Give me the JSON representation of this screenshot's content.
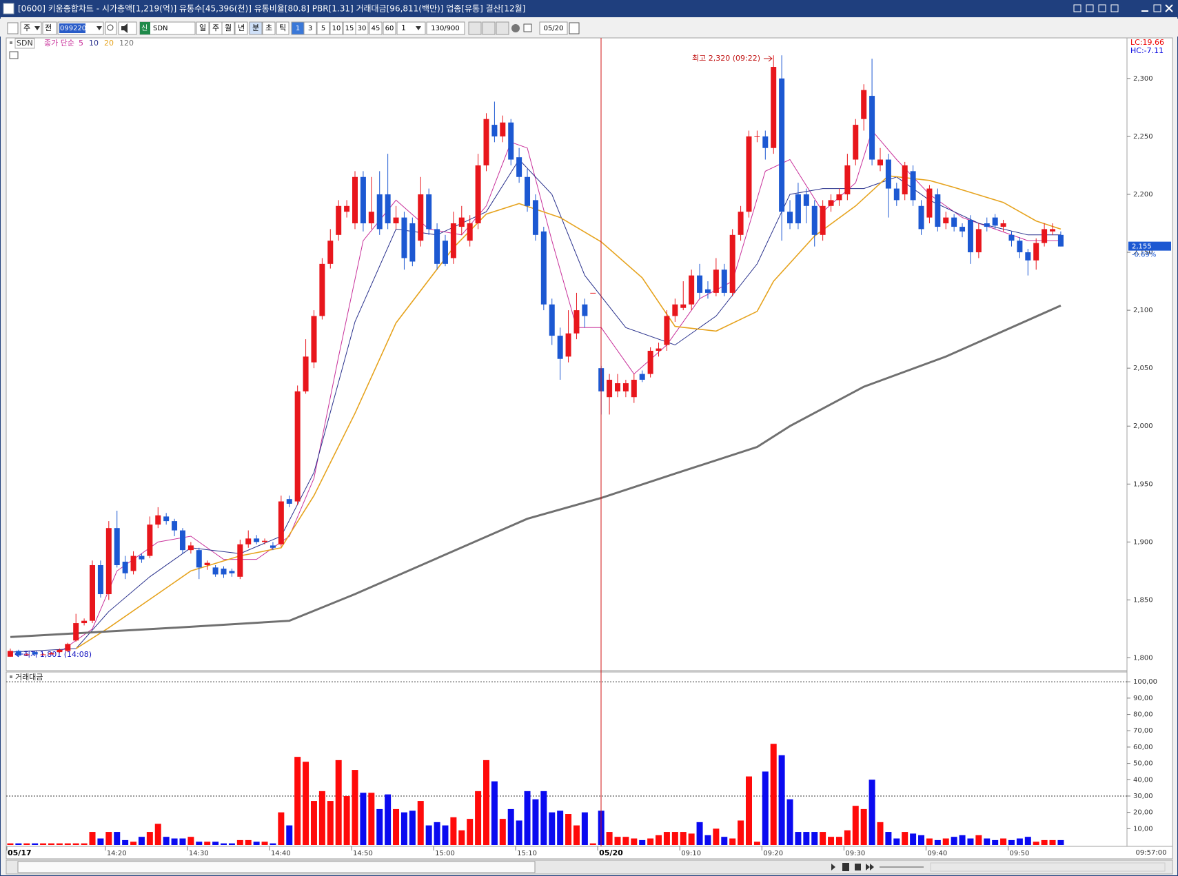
{
  "window": {
    "title": "[0600] 키움종합차트 - 시가총액[1,219(억)] 유통수[45,396(천)] 유통비율[80.8] PBR[1.31] 거래대금[96,811(백만)] 업종[유통] 결산[12월]",
    "toolbar": {
      "period": "주",
      "prev": "전",
      "code": "099220",
      "market": "신",
      "name": "SDN",
      "intervals": [
        "일",
        "주",
        "월",
        "년",
        "분",
        "초",
        "틱"
      ],
      "minutes": [
        "1",
        "3",
        "5",
        "10",
        "15",
        "30",
        "45",
        "60"
      ],
      "multiplier": "1",
      "count": "130/900",
      "date": "05/20"
    }
  },
  "chart_data": {
    "type": "candlestick",
    "name": "SDN",
    "ma_label": "종가 단순",
    "up_color": "#e8161c",
    "down_color": "#1c58d2",
    "ylim": [
      1789,
      2335
    ],
    "yticks": [
      {
        "value": 1800,
        "label": "1,800"
      },
      {
        "value": 1850,
        "label": "1,850"
      },
      {
        "value": 1900,
        "label": "1,900"
      },
      {
        "value": 1950,
        "label": "1,950"
      },
      {
        "value": 2000,
        "label": "2,000"
      },
      {
        "value": 2050,
        "label": "2,050"
      },
      {
        "value": 2100,
        "label": "2,100"
      },
      {
        "value": 2150,
        "label": "2,150"
      },
      {
        "value": 2200,
        "label": "2,200"
      },
      {
        "value": 2250,
        "label": "2,250"
      },
      {
        "value": 2300,
        "label": "2,300"
      }
    ],
    "high_label": "최고 2,320 (09:22)",
    "low_label": "최저 1,801 (14:08)",
    "lc": "LC:19.66",
    "hc": "HC:-7.11",
    "last_price": {
      "value": 2155,
      "label": "2,155"
    },
    "change": "-0.69%",
    "current_time": "09:57:00",
    "categories": [
      "05/17",
      null,
      null,
      null,
      null,
      null,
      null,
      null,
      null,
      null,
      null,
      null,
      "14:20",
      null,
      null,
      null,
      null,
      null,
      null,
      null,
      null,
      null,
      "14:30",
      null,
      null,
      null,
      null,
      null,
      null,
      null,
      null,
      null,
      "14:40",
      null,
      null,
      null,
      null,
      null,
      null,
      null,
      null,
      null,
      "14:50",
      null,
      null,
      null,
      null,
      null,
      null,
      null,
      null,
      null,
      "15:00",
      null,
      null,
      null,
      null,
      null,
      null,
      null,
      null,
      null,
      "15:10",
      null,
      null,
      null,
      null,
      null,
      null,
      null,
      null,
      null,
      "05/20",
      null,
      null,
      null,
      null,
      null,
      null,
      null,
      null,
      null,
      "09:10",
      null,
      null,
      null,
      null,
      null,
      null,
      null,
      null,
      null,
      "09:20",
      null,
      null,
      null,
      null,
      null,
      null,
      null,
      null,
      null,
      "09:30",
      null,
      null,
      null,
      null,
      null,
      null,
      null,
      null,
      null,
      "09:40",
      null,
      null,
      null,
      null,
      null,
      null,
      null,
      null,
      null,
      "09:50",
      null,
      null,
      null,
      null,
      null,
      null
    ],
    "candles": [
      [
        1801,
        1808,
        1801,
        1806
      ],
      [
        1806,
        1807,
        1801,
        1802
      ],
      [
        1803,
        1804,
        1802,
        1803
      ],
      [
        1805,
        1806,
        1802,
        1803
      ],
      [
        1803,
        1804,
        1802,
        1803
      ],
      [
        1803,
        1805,
        1803,
        1804
      ],
      [
        1805,
        1808,
        1804,
        1807
      ],
      [
        1806,
        1813,
        1805,
        1812
      ],
      [
        1815,
        1838,
        1814,
        1830
      ],
      [
        1830,
        1834,
        1828,
        1832
      ],
      [
        1832,
        1884,
        1830,
        1880
      ],
      [
        1880,
        1884,
        1852,
        1855
      ],
      [
        1855,
        1918,
        1850,
        1912
      ],
      [
        1912,
        1927,
        1878,
        1880
      ],
      [
        1883,
        1888,
        1868,
        1873
      ],
      [
        1875,
        1892,
        1872,
        1888
      ],
      [
        1888,
        1890,
        1882,
        1885
      ],
      [
        1888,
        1922,
        1886,
        1915
      ],
      [
        1915,
        1930,
        1912,
        1923
      ],
      [
        1922,
        1925,
        1915,
        1918
      ],
      [
        1918,
        1920,
        1905,
        1910
      ],
      [
        1910,
        1912,
        1890,
        1893
      ],
      [
        1893,
        1900,
        1890,
        1897
      ],
      [
        1893,
        1895,
        1868,
        1878
      ],
      [
        1880,
        1884,
        1876,
        1882
      ],
      [
        1878,
        1880,
        1870,
        1872
      ],
      [
        1877,
        1879,
        1869,
        1872
      ],
      [
        1875,
        1877,
        1870,
        1873
      ],
      [
        1870,
        1902,
        1868,
        1898
      ],
      [
        1898,
        1910,
        1895,
        1903
      ],
      [
        1903,
        1906,
        1898,
        1900
      ],
      [
        1900,
        1903,
        1898,
        1901
      ],
      [
        1897,
        1900,
        1893,
        1895
      ],
      [
        1898,
        1940,
        1896,
        1935
      ],
      [
        1937,
        1940,
        1930,
        1933
      ],
      [
        1935,
        2035,
        1932,
        2030
      ],
      [
        2030,
        2075,
        2028,
        2060
      ],
      [
        2055,
        2100,
        2050,
        2095
      ],
      [
        2095,
        2145,
        2092,
        2140
      ],
      [
        2140,
        2170,
        2136,
        2160
      ],
      [
        2165,
        2195,
        2160,
        2190
      ],
      [
        2185,
        2195,
        2180,
        2190
      ],
      [
        2175,
        2220,
        2170,
        2215
      ],
      [
        2215,
        2220,
        2168,
        2175
      ],
      [
        2175,
        2215,
        2170,
        2185
      ],
      [
        2200,
        2220,
        2165,
        2170
      ],
      [
        2200,
        2235,
        2170,
        2175
      ],
      [
        2175,
        2190,
        2170,
        2180
      ],
      [
        2180,
        2185,
        2135,
        2145
      ],
      [
        2175,
        2180,
        2138,
        2142
      ],
      [
        2160,
        2215,
        2155,
        2200
      ],
      [
        2200,
        2205,
        2165,
        2170
      ],
      [
        2170,
        2175,
        2135,
        2140
      ],
      [
        2160,
        2165,
        2138,
        2140
      ],
      [
        2145,
        2185,
        2140,
        2175
      ],
      [
        2172,
        2190,
        2165,
        2180
      ],
      [
        2160,
        2182,
        2155,
        2175
      ],
      [
        2175,
        2235,
        2170,
        2225
      ],
      [
        2225,
        2270,
        2220,
        2265
      ],
      [
        2260,
        2280,
        2245,
        2250
      ],
      [
        2250,
        2268,
        2245,
        2262
      ],
      [
        2262,
        2265,
        2225,
        2230
      ],
      [
        2232,
        2240,
        2210,
        2215
      ],
      [
        2215,
        2222,
        2185,
        2190
      ],
      [
        2195,
        2200,
        2160,
        2165
      ],
      [
        2168,
        2172,
        2100,
        2105
      ],
      [
        2105,
        2110,
        2070,
        2078
      ],
      [
        2078,
        2085,
        2040,
        2058
      ],
      [
        2060,
        2100,
        2055,
        2080
      ],
      [
        2080,
        2115,
        2075,
        2100
      ],
      [
        2105,
        2110,
        2085,
        2095
      ],
      [
        2115,
        2115,
        2115,
        2115
      ],
      [
        2050,
        2052,
        2010,
        2030
      ],
      [
        2025,
        2045,
        2010,
        2040
      ],
      [
        2030,
        2045,
        2025,
        2037
      ],
      [
        2030,
        2040,
        2025,
        2037
      ],
      [
        2025,
        2045,
        2020,
        2040
      ],
      [
        2045,
        2048,
        2038,
        2040
      ],
      [
        2045,
        2068,
        2042,
        2065
      ],
      [
        2065,
        2072,
        2060,
        2067
      ],
      [
        2070,
        2100,
        2065,
        2095
      ],
      [
        2095,
        2110,
        2090,
        2105
      ],
      [
        2102,
        2125,
        2100,
        2105
      ],
      [
        2105,
        2135,
        2100,
        2130
      ],
      [
        2130,
        2140,
        2110,
        2115
      ],
      [
        2118,
        2125,
        2110,
        2115
      ],
      [
        2115,
        2145,
        2112,
        2135
      ],
      [
        2135,
        2140,
        2112,
        2115
      ],
      [
        2115,
        2170,
        2112,
        2165
      ],
      [
        2165,
        2190,
        2160,
        2185
      ],
      [
        2185,
        2255,
        2180,
        2250
      ],
      [
        2250,
        2255,
        2245,
        2250
      ],
      [
        2250,
        2255,
        2230,
        2240
      ],
      [
        2240,
        2320,
        2235,
        2310
      ],
      [
        2300,
        2320,
        2160,
        2185
      ],
      [
        2185,
        2195,
        2170,
        2175
      ],
      [
        2200,
        2210,
        2170,
        2175
      ],
      [
        2200,
        2205,
        2175,
        2190
      ],
      [
        2190,
        2195,
        2155,
        2165
      ],
      [
        2165,
        2195,
        2160,
        2190
      ],
      [
        2190,
        2200,
        2185,
        2195
      ],
      [
        2195,
        2205,
        2190,
        2200
      ],
      [
        2200,
        2235,
        2195,
        2225
      ],
      [
        2230,
        2265,
        2225,
        2260
      ],
      [
        2265,
        2295,
        2255,
        2290
      ],
      [
        2285,
        2317,
        2225,
        2230
      ],
      [
        2225,
        2240,
        2220,
        2230
      ],
      [
        2230,
        2235,
        2180,
        2205
      ],
      [
        2205,
        2210,
        2190,
        2195
      ],
      [
        2200,
        2228,
        2195,
        2225
      ],
      [
        2220,
        2225,
        2190,
        2195
      ],
      [
        2190,
        2195,
        2165,
        2170
      ],
      [
        2180,
        2208,
        2175,
        2205
      ],
      [
        2200,
        2205,
        2168,
        2172
      ],
      [
        2175,
        2185,
        2170,
        2180
      ],
      [
        2180,
        2183,
        2168,
        2172
      ],
      [
        2172,
        2175,
        2163,
        2168
      ],
      [
        2178,
        2182,
        2140,
        2150
      ],
      [
        2150,
        2175,
        2145,
        2170
      ],
      [
        2175,
        2180,
        2168,
        2172
      ],
      [
        2180,
        2183,
        2170,
        2173
      ],
      [
        2172,
        2178,
        2168,
        2175
      ],
      [
        2165,
        2168,
        2155,
        2160
      ],
      [
        2160,
        2163,
        2145,
        2150
      ],
      [
        2150,
        2153,
        2130,
        2143
      ],
      [
        2143,
        2162,
        2135,
        2158
      ],
      [
        2158,
        2175,
        2155,
        2170
      ],
      [
        2168,
        2175,
        2165,
        2170
      ],
      [
        2165,
        2168,
        2155,
        2155
      ]
    ],
    "series": [
      {
        "name": "5",
        "color": "#c8309a",
        "x": [
          6,
          10,
          13,
          18,
          22,
          26,
          30,
          34,
          37,
          40,
          43,
          47,
          51,
          55,
          58,
          61,
          63,
          66,
          69,
          72,
          76,
          80,
          84,
          88,
          92,
          95,
          99,
          103,
          105,
          108,
          112,
          116,
          120,
          124,
          128
        ],
        "values": [
          1805,
          1825,
          1875,
          1900,
          1905,
          1885,
          1885,
          1905,
          1955,
          2060,
          2160,
          2195,
          2170,
          2165,
          2190,
          2245,
          2240,
          2160,
          2085,
          2085,
          2045,
          2070,
          2110,
          2125,
          2220,
          2230,
          2185,
          2210,
          2255,
          2230,
          2200,
          2180,
          2170,
          2160,
          2160
        ]
      },
      {
        "name": "10",
        "color": "#28308c",
        "x": [
          0,
          8,
          12,
          17,
          22,
          28,
          33,
          37,
          42,
          47,
          52,
          58,
          62,
          66,
          70,
          75,
          81,
          86,
          91,
          95,
          99,
          104,
          108,
          112,
          118,
          124,
          128
        ],
        "values": [
          1805,
          1808,
          1840,
          1870,
          1895,
          1890,
          1905,
          1960,
          2090,
          2170,
          2165,
          2185,
          2230,
          2200,
          2130,
          2085,
          2070,
          2095,
          2140,
          2200,
          2205,
          2205,
          2215,
          2195,
          2175,
          2165,
          2165
        ]
      },
      {
        "name": "20",
        "color": "#e6a31e",
        "x": [
          8,
          12,
          22,
          28,
          33,
          37,
          42,
          47,
          54,
          58,
          62,
          67,
          72,
          77,
          81,
          86,
          91,
          93,
          98,
          103,
          107,
          112,
          115,
          121,
          125,
          128
        ],
        "values": [
          1808,
          1826,
          1875,
          1888,
          1895,
          1940,
          2011,
          2089,
          2154,
          2183,
          2192,
          2180,
          2159,
          2128,
          2086,
          2082,
          2099,
          2125,
          2164,
          2190,
          2216,
          2212,
          2206,
          2193,
          2177,
          2170
        ]
      },
      {
        "name": "120",
        "color": "#707070",
        "x": [
          0,
          20,
          34,
          42,
          63,
          72,
          81,
          91,
          95,
          104,
          114,
          128
        ],
        "values": [
          1818,
          1826,
          1832,
          1855,
          1920,
          1938,
          1959,
          1982,
          2000,
          2034,
          2060,
          2104
        ]
      }
    ],
    "volume": {
      "title": "거래대금",
      "up_color": "#ff0a0a",
      "down_color": "#0a0af0",
      "ylim": [
        0,
        106
      ],
      "yticks": [
        {
          "value": 10,
          "label": "10,00"
        },
        {
          "value": 20,
          "label": "20,00"
        },
        {
          "value": 30,
          "label": "30,00"
        },
        {
          "value": 40,
          "label": "40,00"
        },
        {
          "value": 50,
          "label": "50,00"
        },
        {
          "value": 60,
          "label": "60,00"
        },
        {
          "value": 70,
          "label": "70,00"
        },
        {
          "value": 80,
          "label": "80,00"
        },
        {
          "value": 90,
          "label": "90,00"
        },
        {
          "value": 100,
          "label": "100,00"
        }
      ],
      "guide_lines": [
        30,
        100
      ],
      "values": [
        1,
        1,
        1,
        1,
        1,
        1,
        1,
        1,
        1,
        1,
        8,
        4,
        8,
        8,
        3,
        2,
        5,
        8,
        13,
        5,
        4,
        4,
        5,
        2,
        2,
        2,
        1,
        1,
        3,
        3,
        2,
        2,
        1,
        20,
        12,
        54,
        51,
        27,
        33,
        27,
        52,
        30,
        46,
        32,
        32,
        22,
        31,
        22,
        20,
        21,
        27,
        12,
        14,
        12,
        17,
        9,
        16,
        33,
        52,
        39,
        16,
        22,
        15,
        33,
        28,
        33,
        20,
        21,
        19,
        12,
        20,
        1,
        21,
        8,
        5,
        5,
        4,
        3,
        4,
        6,
        8,
        8,
        8,
        7,
        14,
        6,
        10,
        5,
        4,
        15,
        42,
        2,
        45,
        62,
        55,
        28,
        8,
        8,
        8,
        8,
        5,
        5,
        9,
        24,
        22,
        40,
        14,
        8,
        4,
        8,
        7,
        6,
        4,
        3,
        4,
        5,
        6,
        4,
        6,
        4,
        3,
        4,
        3,
        4,
        5,
        2,
        3,
        3,
        3
      ]
    }
  }
}
